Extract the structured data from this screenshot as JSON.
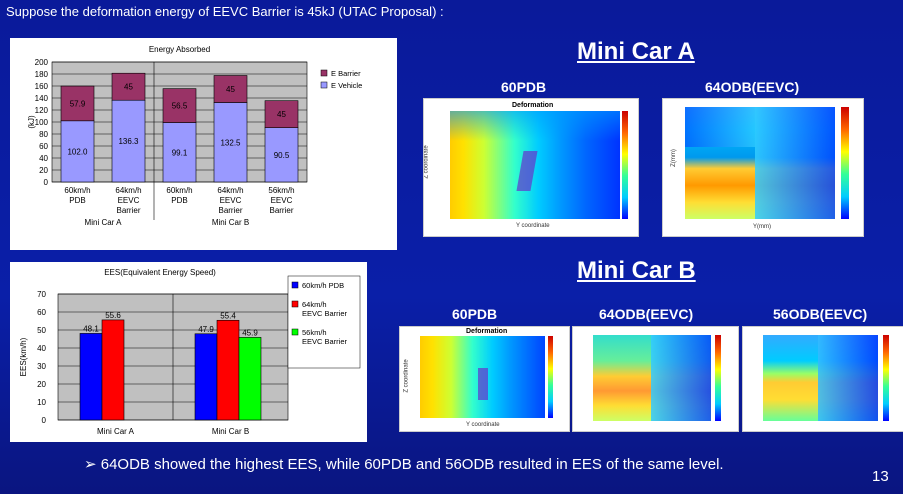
{
  "slide": {
    "title": "Suppose the deformation energy of EEVC Barrier is 45kJ (UTAC Proposal) :",
    "bullet": "➢ 64ODB showed the highest EES, while 60PDB and 56ODB resulted in EES of the same level.",
    "page_number": "13"
  },
  "mini_car_a": {
    "heading": "Mini Car A",
    "sims": [
      {
        "label": "60PDB",
        "inner_title": "Deformation",
        "x_axis": "Y coordinate",
        "y_axis": "Z coordinate"
      },
      {
        "label": "64ODB(EEVC)",
        "x_axis": "Y(mm)",
        "y_axis": "Z(mm)"
      }
    ]
  },
  "mini_car_b": {
    "heading": "Mini Car B",
    "sims": [
      {
        "label": "60PDB",
        "inner_title": "Deformation",
        "x_axis": "Y coordinate",
        "y_axis": "Z coordinate"
      },
      {
        "label": "64ODB(EEVC)"
      },
      {
        "label": "56ODB(EEVC)"
      }
    ]
  },
  "colors": {
    "e_barrier": "#993366",
    "e_vehicle": "#9999ff",
    "pdb": "#0000ff",
    "odb64": "#ff0000",
    "odb56": "#00ff00",
    "plot_bg": "#c0c0c0"
  },
  "chart_data": [
    {
      "type": "bar",
      "stacked": true,
      "title": "Energy Absorbed",
      "ylabel": "(kJ)",
      "ylim": [
        0,
        200
      ],
      "yticks": [
        0,
        20,
        40,
        60,
        80,
        100,
        120,
        140,
        160,
        180,
        200
      ],
      "categories": [
        {
          "lines": [
            "60km/h",
            "PDB"
          ]
        },
        {
          "lines": [
            "64km/h",
            "EEVC",
            "Barrier"
          ]
        },
        {
          "lines": [
            "60km/h",
            "PDB"
          ]
        },
        {
          "lines": [
            "64km/h",
            "EEVC",
            "Barrier"
          ]
        },
        {
          "lines": [
            "56km/h",
            "EEVC",
            "Barrier"
          ]
        }
      ],
      "groups": [
        {
          "label": "Mini Car A",
          "categories": [
            0,
            1
          ]
        },
        {
          "label": "Mini Car B",
          "categories": [
            2,
            3,
            4
          ]
        }
      ],
      "series": [
        {
          "name": "E Vehicle",
          "values": [
            102.0,
            136.3,
            99.1,
            132.5,
            90.5
          ],
          "labels": [
            "102.0",
            "136.3",
            "99.1",
            "132.5",
            "90.5"
          ]
        },
        {
          "name": "E Barrier",
          "values": [
            57.9,
            45,
            56.5,
            45,
            45
          ],
          "labels": [
            "57.9",
            "45",
            "56.5",
            "45",
            "45"
          ]
        }
      ],
      "legend": [
        "E Barrier",
        "E Vehicle"
      ],
      "grid": true,
      "legend_position": "top-right"
    },
    {
      "type": "bar",
      "title": "EES(Equivalent Energy Speed)",
      "ylabel": "EES(km/h)",
      "ylim": [
        0,
        70
      ],
      "yticks": [
        0,
        10,
        20,
        30,
        40,
        50,
        60,
        70
      ],
      "groups": [
        {
          "label": "Mini Car A",
          "bars": [
            {
              "series": 0,
              "value": 48.1,
              "label": "48.1"
            },
            {
              "series": 1,
              "value": 55.6,
              "label": "55.6"
            }
          ]
        },
        {
          "label": "Mini Car B",
          "bars": [
            {
              "series": 0,
              "value": 47.9,
              "label": "47.9"
            },
            {
              "series": 1,
              "value": 55.4,
              "label": "55.4"
            },
            {
              "series": 2,
              "value": 45.9,
              "label": "45.9"
            }
          ]
        }
      ],
      "series": [
        {
          "name": "60km/h PDB",
          "lines": [
            "60km/h PDB"
          ]
        },
        {
          "name": "64km/h EEVC Barrier",
          "lines": [
            "64km/h",
            "EEVC Barrier"
          ]
        },
        {
          "name": "56km/h EEVC Barrier",
          "lines": [
            "56km/h",
            "EEVC Barrier"
          ]
        }
      ],
      "grid": true,
      "legend_position": "right"
    }
  ]
}
